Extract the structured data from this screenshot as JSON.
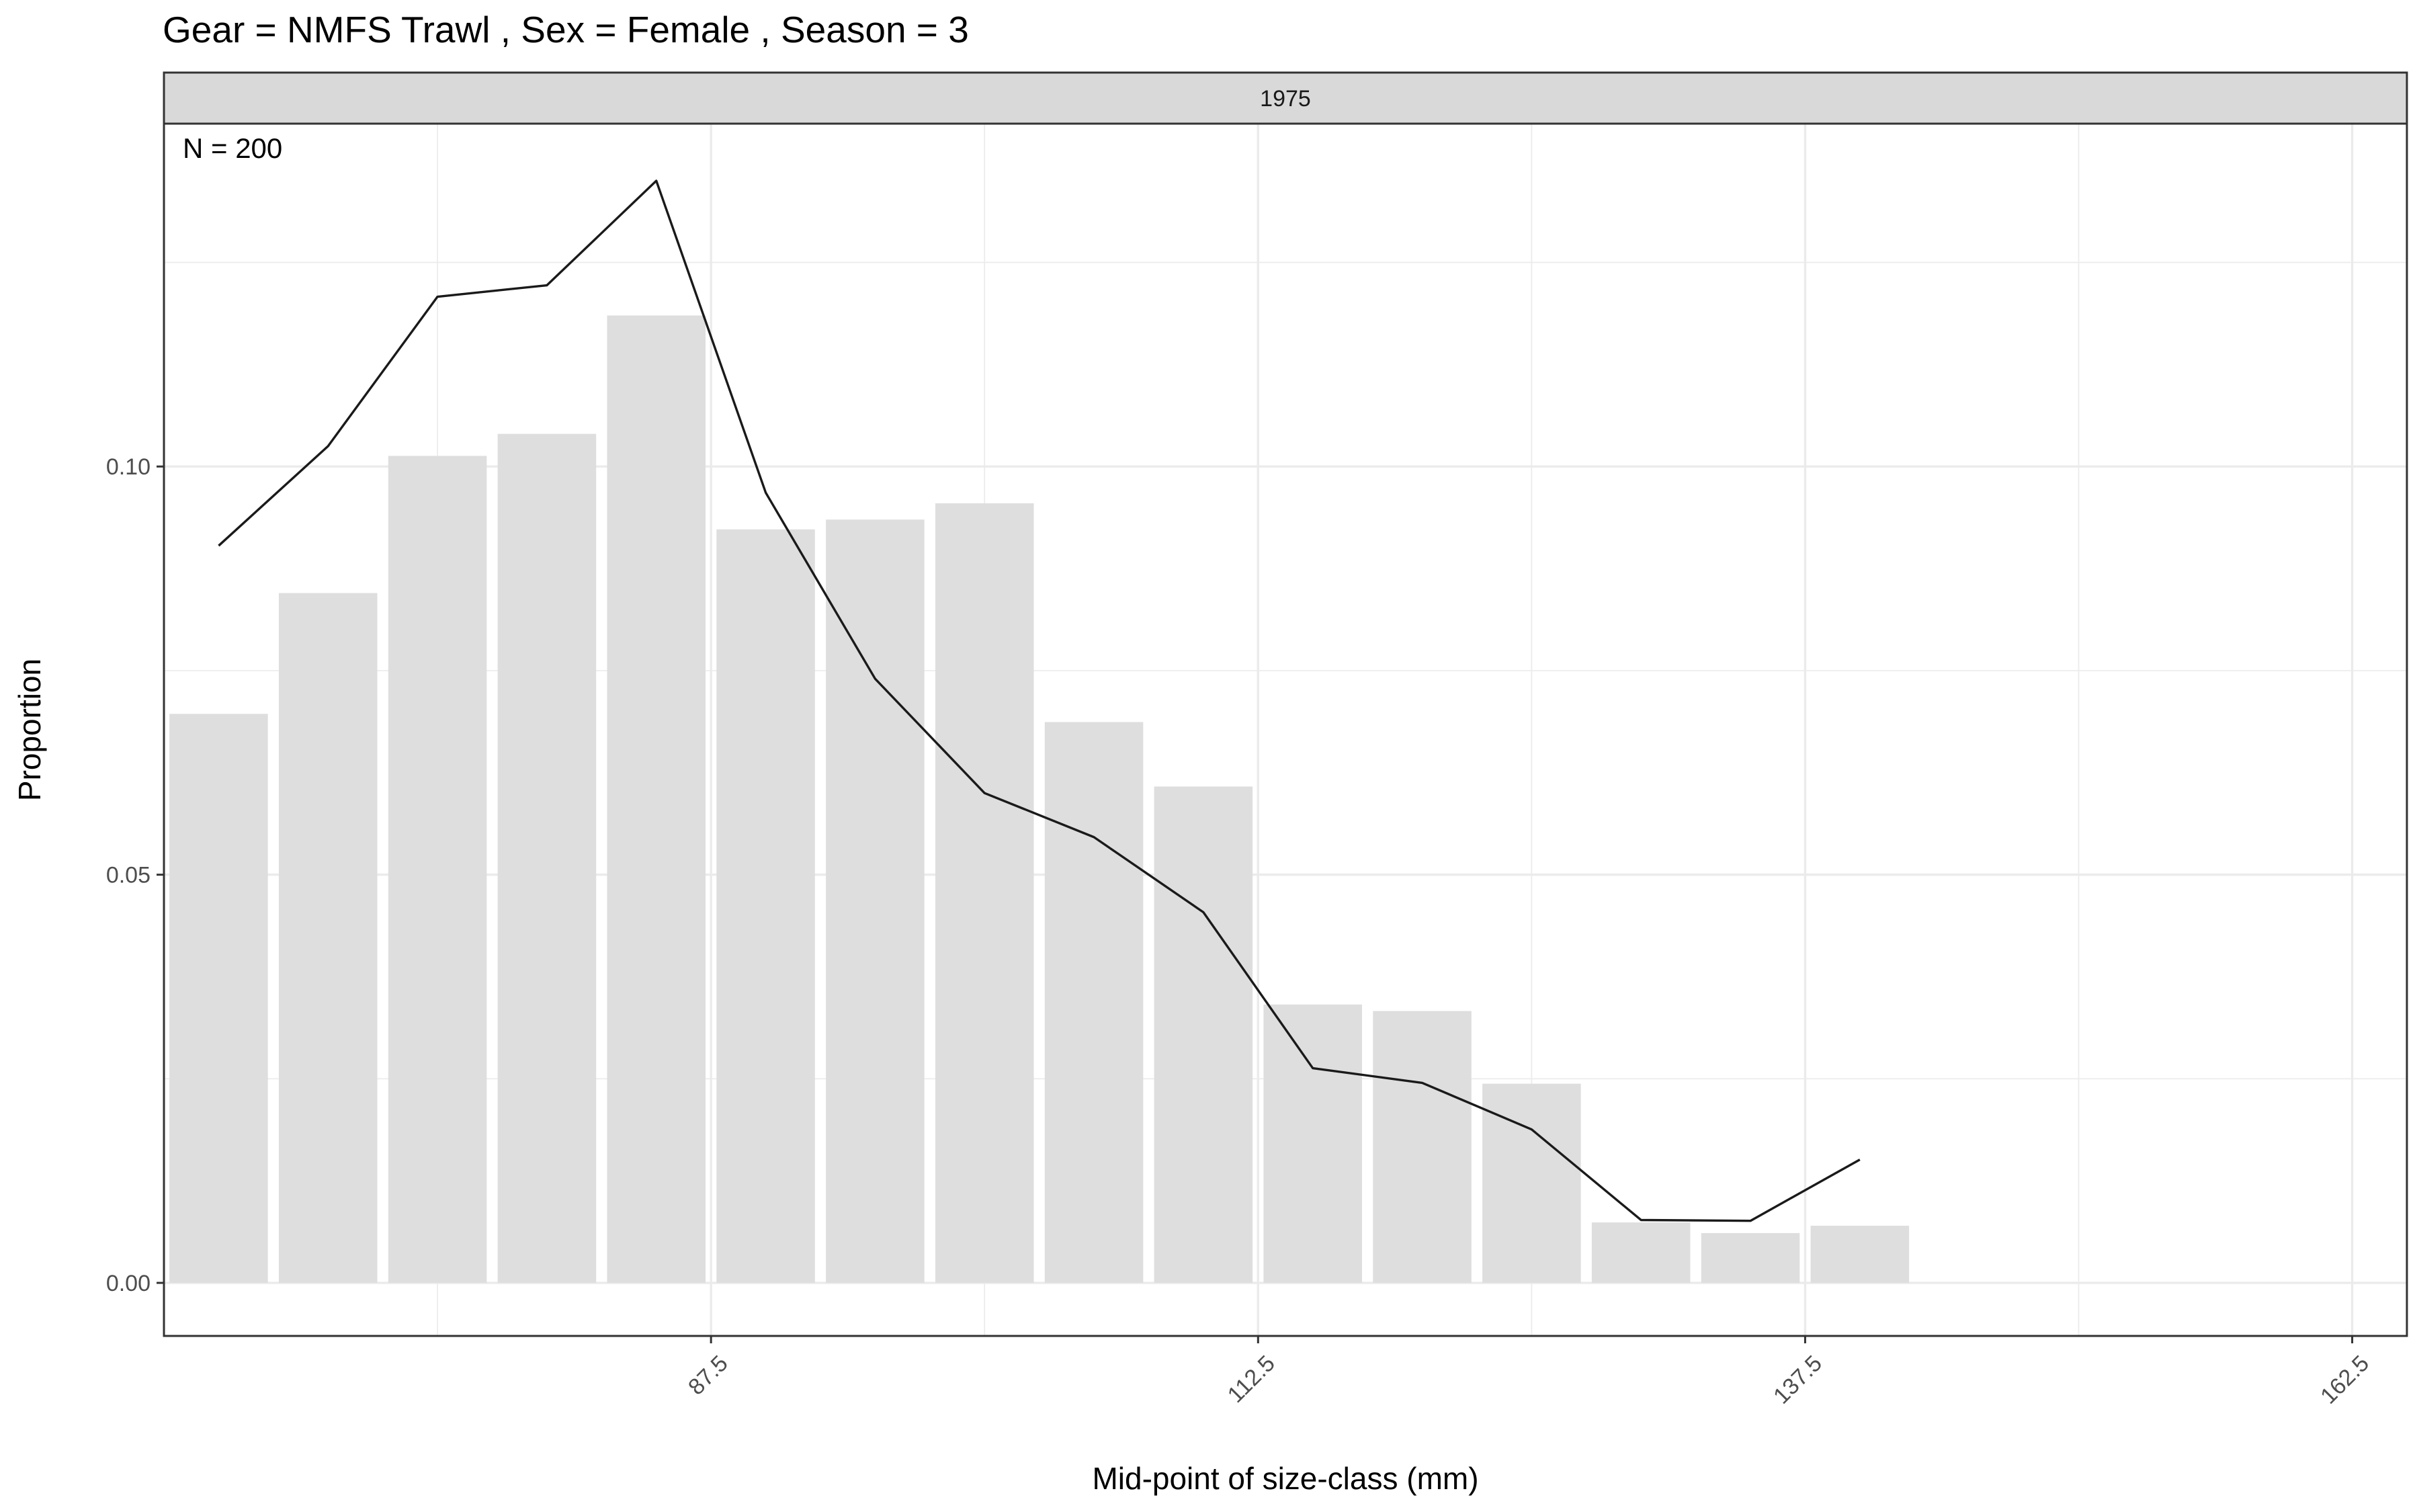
{
  "chart_data": {
    "type": "bar",
    "title": "Gear = NMFS Trawl , Sex = Female , Season = 3",
    "facet_label": "1975",
    "annotation": "N = 200",
    "xlabel": "Mid-point of size-class (mm)",
    "ylabel": "Proportion",
    "xlim": [
      62.5,
      165
    ],
    "ylim": [
      -0.0065,
      0.142
    ],
    "x_ticks": [
      87.5,
      112.5,
      137.5,
      162.5
    ],
    "x_tick_labels": [
      "87.5",
      "112.5",
      "137.5",
      "162.5"
    ],
    "y_ticks": [
      0.0,
      0.05,
      0.1
    ],
    "y_tick_labels": [
      "0.00",
      "0.05",
      "0.10"
    ],
    "grid": true,
    "bar_width": 4.5,
    "colors": {
      "bars": "#dedede",
      "line": "#1a1a1a",
      "strip": "#d9d9d9"
    },
    "series": [
      {
        "type": "bar",
        "x": [
          65,
          70,
          75,
          80,
          85,
          90,
          95,
          100,
          105,
          110,
          115,
          120,
          125,
          130,
          135,
          140
        ],
        "values": [
          0.0697,
          0.0845,
          0.1013,
          0.104,
          0.1185,
          0.0923,
          0.0935,
          0.0955,
          0.0687,
          0.0608,
          0.0341,
          0.0333,
          0.0244,
          0.0074,
          0.0061,
          0.007
        ]
      },
      {
        "type": "line",
        "x": [
          65,
          70,
          75,
          80,
          85,
          90,
          95,
          100,
          105,
          110,
          115,
          120,
          125,
          130,
          135,
          140
        ],
        "values": [
          0.0903,
          0.1025,
          0.1208,
          0.1222,
          0.135,
          0.0968,
          0.074,
          0.06,
          0.0546,
          0.0454,
          0.0263,
          0.0245,
          0.0188,
          0.0077,
          0.0076,
          0.0151
        ]
      }
    ]
  }
}
